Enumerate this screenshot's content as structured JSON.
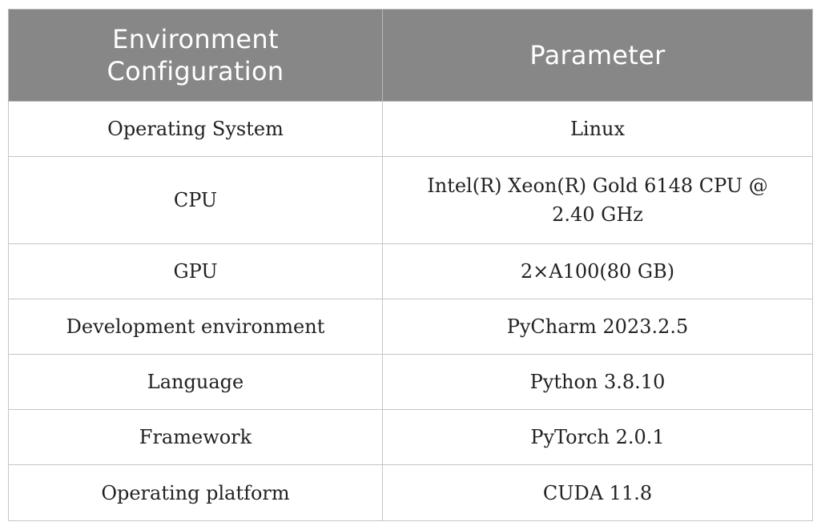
{
  "table": {
    "headers": [
      "Environment Configuration",
      "Parameter"
    ],
    "rows": [
      {
        "config": "Operating System",
        "parameter": "Linux"
      },
      {
        "config": "CPU",
        "parameter": "Intel(R) Xeon(R) Gold 6148 CPU @ 2.40 GHz"
      },
      {
        "config": "GPU",
        "parameter": "2×A100(80 GB)"
      },
      {
        "config": "Development environment",
        "parameter": "PyCharm 2023.2.5"
      },
      {
        "config": "Language",
        "parameter": "Python 3.8.10"
      },
      {
        "config": "Framework",
        "parameter": "PyTorch 2.0.1"
      },
      {
        "config": "Operating platform",
        "parameter": "CUDA 11.8"
      }
    ]
  },
  "colors": {
    "header_background": "#878787",
    "header_text": "#ffffff",
    "grid_line": "#c6c6c6"
  }
}
